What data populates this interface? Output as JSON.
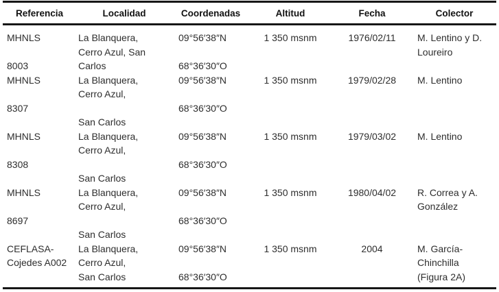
{
  "table": {
    "columns": {
      "referencia": "Referencia",
      "localidad": "Localidad",
      "coordenadas": "Coordenadas",
      "altitud": "Altitud",
      "fecha": "Fecha",
      "colector": "Colector"
    },
    "rows": [
      {
        "referencia": "MHNLS\n\n8003",
        "localidad": "La Blanquera,\nCerro Azul, San\nCarlos",
        "coordenadas": "09°56′38″N\n\n68°36′30″O",
        "altitud": "1 350 msnm",
        "fecha": "1976/02/11",
        "colector": "M. Lentino y D.\nLoureiro"
      },
      {
        "referencia": "MHNLS\n\n8307",
        "localidad": "La Blanquera,\nCerro Azul,\n\nSan Carlos",
        "coordenadas": "09°56′38″N\n\n68°36′30″O",
        "altitud": "1 350 msnm",
        "fecha": "1979/02/28",
        "colector": "M. Lentino"
      },
      {
        "referencia": "MHNLS\n\n8308",
        "localidad": "La Blanquera,\nCerro Azul,\n\nSan Carlos",
        "coordenadas": "09°56′38″N\n\n68°36′30″O",
        "altitud": "1 350 msnm",
        "fecha": "1979/03/02",
        "colector": "M. Lentino"
      },
      {
        "referencia": "MHNLS\n\n8697",
        "localidad": "La Blanquera,\nCerro Azul,\n\nSan Carlos",
        "coordenadas": "09°56′38″N\n\n68°36′30″O",
        "altitud": "1 350 msnm",
        "fecha": "1980/04/02",
        "colector": "R. Correa y A.\nGonzález"
      },
      {
        "referencia": "CEFLASA-\nCojedes A002",
        "localidad": "La Blanquera,\nCerro Azul,\nSan Carlos",
        "coordenadas": "09°56′38″N\n\n68°36′30″O",
        "altitud": "1 350 msnm",
        "fecha": "2004",
        "colector": "M. García-\nChinchilla\n(Figura 2A)"
      }
    ],
    "rule_color": "#161616",
    "text_color": "#2d2d2d"
  }
}
